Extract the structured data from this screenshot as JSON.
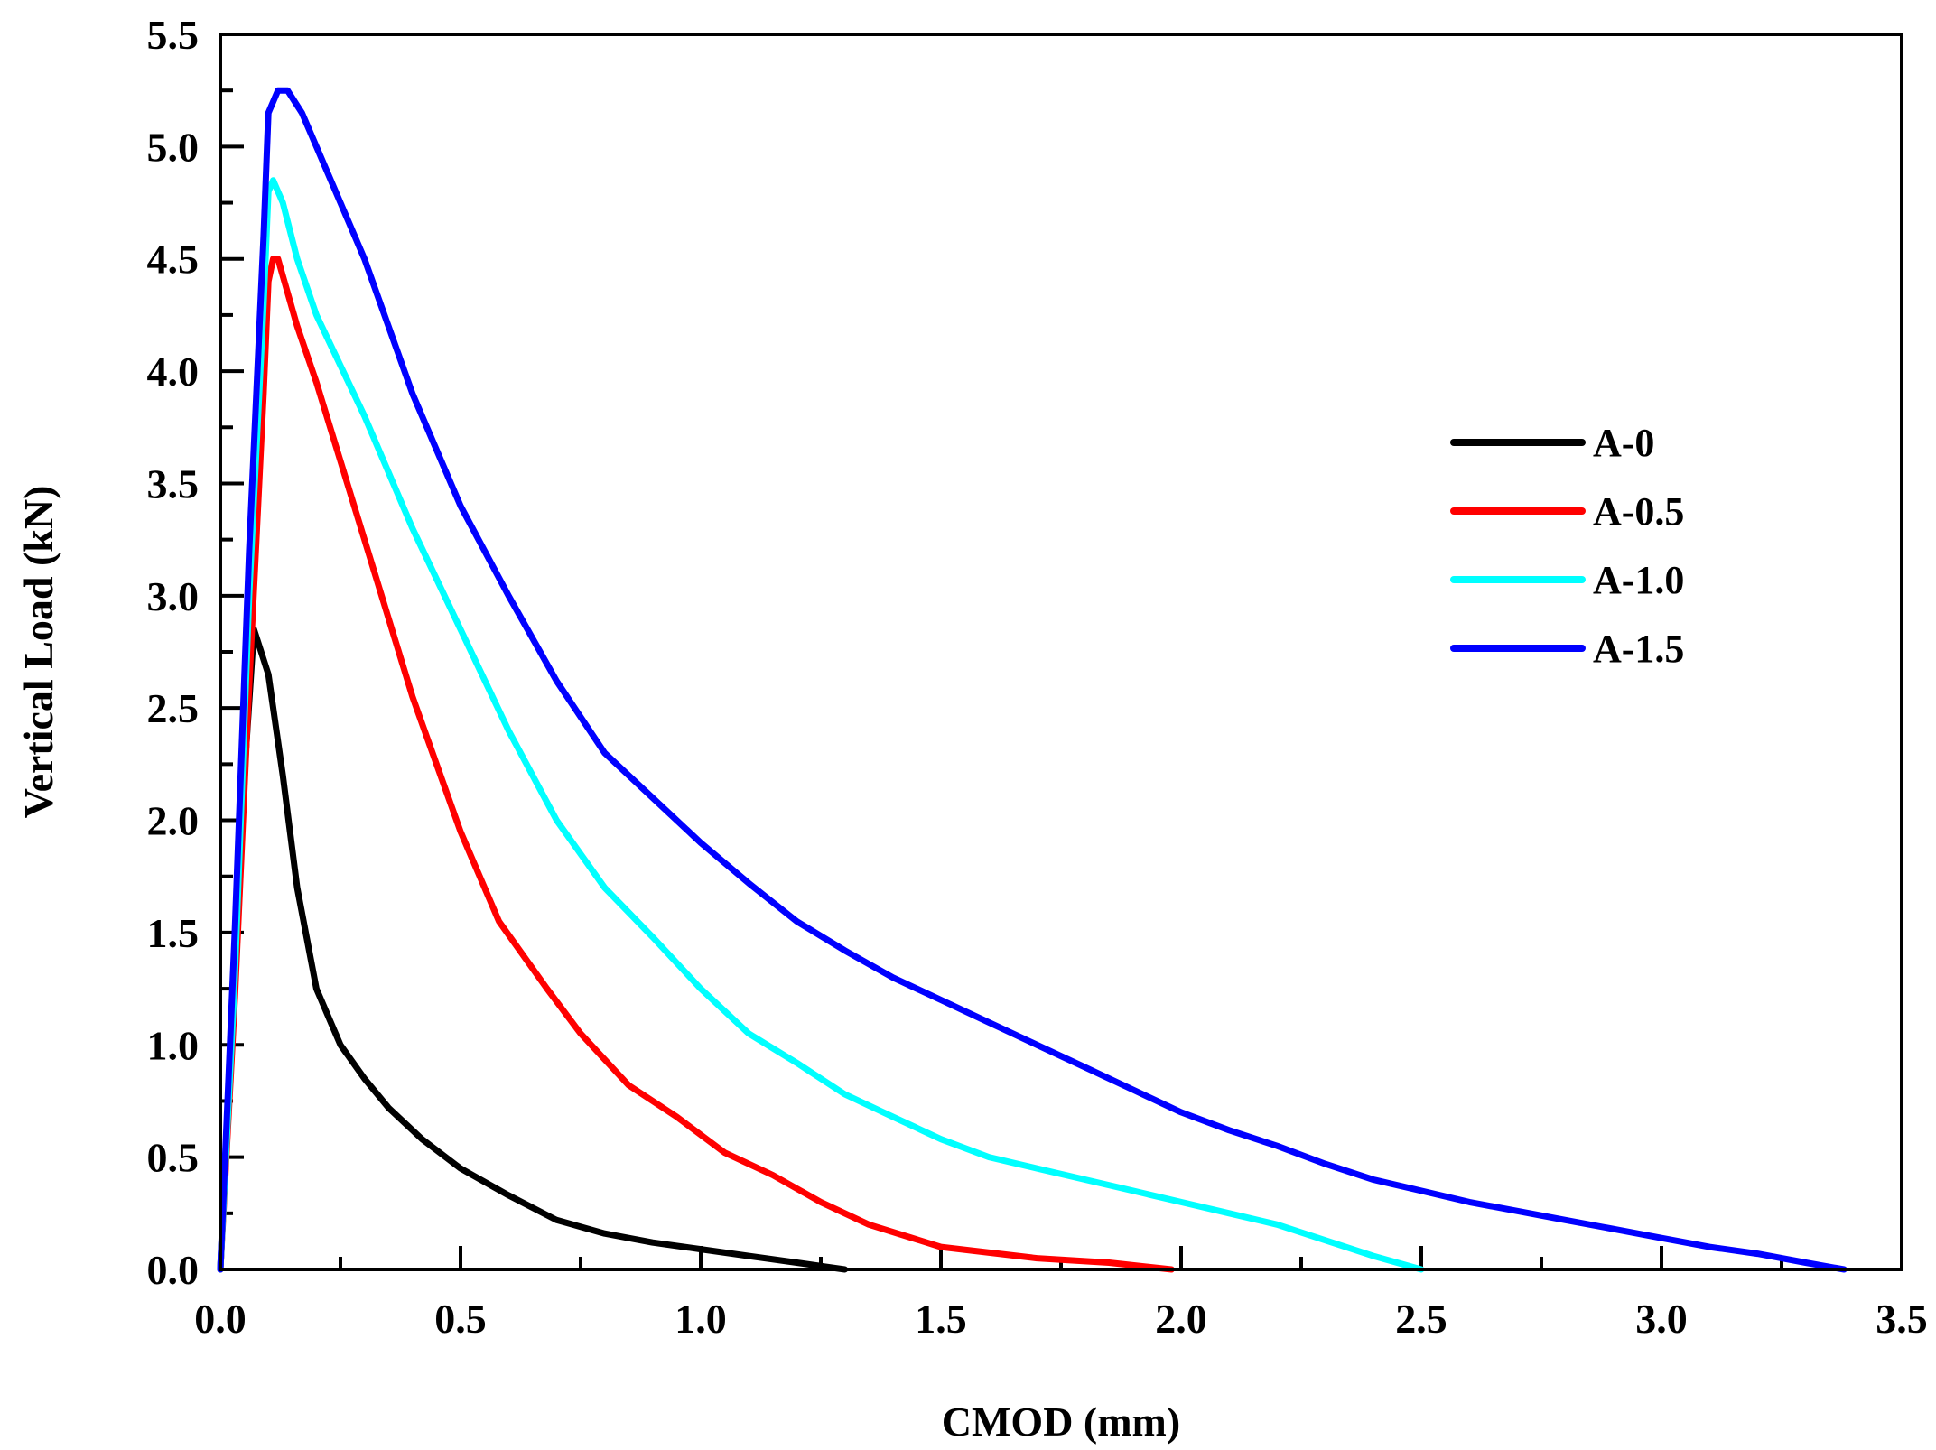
{
  "chart_data": {
    "type": "line",
    "title": "",
    "xlabel": "CMOD (mm)",
    "ylabel": "Vertical Load (kN)",
    "xlim": [
      0,
      3.5
    ],
    "ylim": [
      0,
      5.5
    ],
    "xticks": [
      0.0,
      0.5,
      1.0,
      1.5,
      2.0,
      2.5,
      3.0,
      3.5
    ],
    "yticks": [
      0.0,
      0.5,
      1.0,
      1.5,
      2.0,
      2.5,
      3.0,
      3.5,
      4.0,
      4.5,
      5.0,
      5.5
    ],
    "xtick_labels": [
      "0.0",
      "0.5",
      "1.0",
      "1.5",
      "2.0",
      "2.5",
      "3.0",
      "3.5"
    ],
    "ytick_labels": [
      "0.0",
      "0.5",
      "1.0",
      "1.5",
      "2.0",
      "2.5",
      "3.0",
      "3.5",
      "4.0",
      "4.5",
      "5.0",
      "5.5"
    ],
    "grid": false,
    "legend_position": "right",
    "series": [
      {
        "name": "A-0",
        "color": "#000000",
        "points": [
          [
            0,
            0
          ],
          [
            0.02,
            0.9
          ],
          [
            0.05,
            2.2
          ],
          [
            0.07,
            2.85
          ],
          [
            0.1,
            2.65
          ],
          [
            0.13,
            2.2
          ],
          [
            0.16,
            1.7
          ],
          [
            0.2,
            1.25
          ],
          [
            0.25,
            1.0
          ],
          [
            0.3,
            0.85
          ],
          [
            0.35,
            0.72
          ],
          [
            0.42,
            0.58
          ],
          [
            0.5,
            0.45
          ],
          [
            0.6,
            0.33
          ],
          [
            0.7,
            0.22
          ],
          [
            0.8,
            0.16
          ],
          [
            0.9,
            0.12
          ],
          [
            1.0,
            0.09
          ],
          [
            1.1,
            0.06
          ],
          [
            1.2,
            0.03
          ],
          [
            1.3,
            0.0
          ]
        ]
      },
      {
        "name": "A-0.5",
        "color": "#ff0000",
        "points": [
          [
            0,
            0
          ],
          [
            0.03,
            1.2
          ],
          [
            0.06,
            2.6
          ],
          [
            0.09,
            3.9
          ],
          [
            0.1,
            4.4
          ],
          [
            0.11,
            4.5
          ],
          [
            0.12,
            4.5
          ],
          [
            0.16,
            4.2
          ],
          [
            0.2,
            3.95
          ],
          [
            0.3,
            3.25
          ],
          [
            0.4,
            2.55
          ],
          [
            0.5,
            1.95
          ],
          [
            0.58,
            1.55
          ],
          [
            0.68,
            1.25
          ],
          [
            0.75,
            1.05
          ],
          [
            0.85,
            0.82
          ],
          [
            0.95,
            0.68
          ],
          [
            1.05,
            0.52
          ],
          [
            1.15,
            0.42
          ],
          [
            1.25,
            0.3
          ],
          [
            1.35,
            0.2
          ],
          [
            1.5,
            0.1
          ],
          [
            1.7,
            0.05
          ],
          [
            1.85,
            0.03
          ],
          [
            1.98,
            0.0
          ]
        ]
      },
      {
        "name": "A-1.0",
        "color": "#00ffff",
        "points": [
          [
            0,
            0
          ],
          [
            0.03,
            1.3
          ],
          [
            0.06,
            3.0
          ],
          [
            0.09,
            4.3
          ],
          [
            0.1,
            4.8
          ],
          [
            0.11,
            4.85
          ],
          [
            0.13,
            4.75
          ],
          [
            0.16,
            4.5
          ],
          [
            0.2,
            4.25
          ],
          [
            0.3,
            3.8
          ],
          [
            0.4,
            3.3
          ],
          [
            0.5,
            2.85
          ],
          [
            0.6,
            2.4
          ],
          [
            0.7,
            2.0
          ],
          [
            0.8,
            1.7
          ],
          [
            0.9,
            1.48
          ],
          [
            1.0,
            1.25
          ],
          [
            1.1,
            1.05
          ],
          [
            1.2,
            0.92
          ],
          [
            1.3,
            0.78
          ],
          [
            1.4,
            0.68
          ],
          [
            1.5,
            0.58
          ],
          [
            1.6,
            0.5
          ],
          [
            1.7,
            0.45
          ],
          [
            1.8,
            0.4
          ],
          [
            1.9,
            0.35
          ],
          [
            2.0,
            0.3
          ],
          [
            2.1,
            0.25
          ],
          [
            2.2,
            0.2
          ],
          [
            2.3,
            0.13
          ],
          [
            2.4,
            0.06
          ],
          [
            2.5,
            0.0
          ]
        ]
      },
      {
        "name": "A-1.5",
        "color": "#0000ff",
        "points": [
          [
            0,
            0
          ],
          [
            0.03,
            1.5
          ],
          [
            0.06,
            3.2
          ],
          [
            0.09,
            4.6
          ],
          [
            0.1,
            5.15
          ],
          [
            0.12,
            5.25
          ],
          [
            0.14,
            5.25
          ],
          [
            0.17,
            5.15
          ],
          [
            0.2,
            5.0
          ],
          [
            0.25,
            4.75
          ],
          [
            0.3,
            4.5
          ],
          [
            0.35,
            4.2
          ],
          [
            0.4,
            3.9
          ],
          [
            0.45,
            3.65
          ],
          [
            0.5,
            3.4
          ],
          [
            0.6,
            3.0
          ],
          [
            0.7,
            2.62
          ],
          [
            0.8,
            2.3
          ],
          [
            0.9,
            2.1
          ],
          [
            1.0,
            1.9
          ],
          [
            1.1,
            1.72
          ],
          [
            1.2,
            1.55
          ],
          [
            1.3,
            1.42
          ],
          [
            1.4,
            1.3
          ],
          [
            1.5,
            1.2
          ],
          [
            1.6,
            1.1
          ],
          [
            1.7,
            1.0
          ],
          [
            1.8,
            0.9
          ],
          [
            1.9,
            0.8
          ],
          [
            2.0,
            0.7
          ],
          [
            2.1,
            0.62
          ],
          [
            2.2,
            0.55
          ],
          [
            2.3,
            0.47
          ],
          [
            2.4,
            0.4
          ],
          [
            2.5,
            0.35
          ],
          [
            2.6,
            0.3
          ],
          [
            2.7,
            0.26
          ],
          [
            2.8,
            0.22
          ],
          [
            2.9,
            0.18
          ],
          [
            3.0,
            0.14
          ],
          [
            3.1,
            0.1
          ],
          [
            3.2,
            0.07
          ],
          [
            3.3,
            0.03
          ],
          [
            3.38,
            0.0
          ]
        ]
      }
    ]
  }
}
